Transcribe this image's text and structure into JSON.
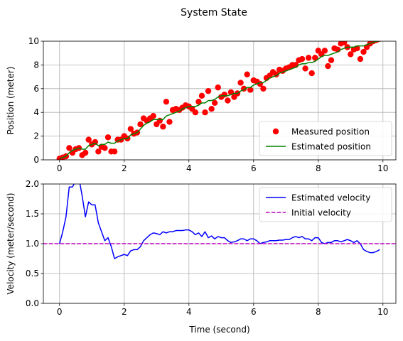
{
  "figure": {
    "suptitle": "System State"
  },
  "chart_data": [
    {
      "type": "scatter+line",
      "title": "",
      "xlabel": "",
      "ylabel": "Position (meter)",
      "xlim": [
        -0.5,
        10.4
      ],
      "ylim": [
        0,
        10
      ],
      "xticks": [
        0,
        2,
        4,
        6,
        8,
        10
      ],
      "yticks": [
        0,
        2,
        4,
        6,
        8,
        10
      ],
      "grid": true,
      "legend_position": "lower-right",
      "series": [
        {
          "name": "Measured position",
          "kind": "points",
          "color": "#ff0000",
          "x": [
            0.0,
            0.1,
            0.2,
            0.3,
            0.4,
            0.5,
            0.6,
            0.7,
            0.8,
            0.9,
            1.0,
            1.1,
            1.2,
            1.3,
            1.4,
            1.5,
            1.6,
            1.7,
            1.8,
            1.9,
            2.0,
            2.1,
            2.2,
            2.3,
            2.4,
            2.5,
            2.6,
            2.7,
            2.8,
            2.9,
            3.0,
            3.1,
            3.2,
            3.3,
            3.4,
            3.5,
            3.6,
            3.7,
            3.8,
            3.9,
            4.0,
            4.1,
            4.2,
            4.3,
            4.4,
            4.5,
            4.6,
            4.7,
            4.8,
            4.9,
            5.0,
            5.1,
            5.2,
            5.3,
            5.4,
            5.5,
            5.6,
            5.7,
            5.8,
            5.9,
            6.0,
            6.1,
            6.2,
            6.3,
            6.4,
            6.5,
            6.6,
            6.7,
            6.8,
            6.9,
            7.0,
            7.1,
            7.2,
            7.3,
            7.4,
            7.5,
            7.6,
            7.7,
            7.8,
            7.9,
            8.0,
            8.1,
            8.2,
            8.3,
            8.4,
            8.5,
            8.6,
            8.7,
            8.8,
            8.9,
            9.0,
            9.1,
            9.2,
            9.3,
            9.4,
            9.5,
            9.6,
            9.7,
            9.8,
            9.9
          ],
          "y": [
            0.1,
            0.2,
            0.3,
            1.0,
            0.6,
            0.9,
            1.0,
            0.4,
            0.6,
            1.7,
            1.3,
            1.5,
            0.7,
            1.1,
            1.0,
            1.9,
            0.7,
            0.7,
            1.7,
            1.7,
            2.0,
            1.8,
            2.6,
            2.2,
            2.3,
            3.0,
            3.5,
            3.3,
            3.5,
            3.7,
            3.0,
            3.3,
            2.8,
            4.9,
            3.2,
            4.2,
            4.3,
            4.2,
            4.4,
            4.6,
            4.5,
            4.3,
            4.0,
            4.9,
            5.4,
            4.0,
            5.8,
            4.3,
            4.8,
            6.1,
            5.3,
            5.5,
            5.0,
            5.7,
            5.3,
            5.6,
            6.5,
            6.0,
            7.2,
            5.9,
            6.7,
            6.6,
            6.4,
            6.0,
            6.9,
            7.1,
            7.4,
            7.2,
            7.6,
            7.5,
            7.7,
            7.8,
            8.0,
            8.0,
            8.4,
            8.5,
            7.7,
            8.6,
            7.3,
            8.6,
            9.2,
            8.9,
            9.2,
            7.9,
            8.4,
            9.4,
            9.3,
            9.8,
            9.9,
            9.5,
            8.9,
            9.3,
            9.4,
            8.5,
            9.1,
            9.5,
            9.8,
            10.0,
            10.1,
            10.2
          ]
        },
        {
          "name": "Estimated position",
          "kind": "line",
          "color": "#008000",
          "x": [
            0.0,
            0.1,
            0.2,
            0.3,
            0.4,
            0.5,
            0.6,
            0.7,
            0.8,
            0.9,
            1.0,
            1.1,
            1.2,
            1.3,
            1.4,
            1.5,
            1.6,
            1.7,
            1.8,
            1.9,
            2.0,
            2.1,
            2.2,
            2.3,
            2.4,
            2.5,
            2.6,
            2.7,
            2.8,
            2.9,
            3.0,
            3.1,
            3.2,
            3.3,
            3.4,
            3.5,
            3.6,
            3.7,
            3.8,
            3.9,
            4.0,
            4.1,
            4.2,
            4.3,
            4.4,
            4.5,
            4.6,
            4.7,
            4.8,
            4.9,
            5.0,
            5.1,
            5.2,
            5.3,
            5.4,
            5.5,
            5.6,
            5.7,
            5.8,
            5.9,
            6.0,
            6.1,
            6.2,
            6.3,
            6.4,
            6.5,
            6.6,
            6.7,
            6.8,
            6.9,
            7.0,
            7.1,
            7.2,
            7.3,
            7.4,
            7.5,
            7.6,
            7.7,
            7.8,
            7.9,
            8.0,
            8.1,
            8.2,
            8.3,
            8.4,
            8.5,
            8.6,
            8.7,
            8.8,
            8.9,
            9.0,
            9.1,
            9.2,
            9.3,
            9.4,
            9.5,
            9.6,
            9.7,
            9.8,
            9.9
          ],
          "y": [
            0.1,
            0.2,
            0.3,
            0.6,
            0.8,
            0.9,
            1.0,
            0.9,
            0.9,
            1.2,
            1.3,
            1.4,
            1.2,
            1.3,
            1.3,
            1.5,
            1.4,
            1.4,
            1.6,
            1.7,
            1.8,
            1.8,
            2.1,
            2.2,
            2.3,
            2.6,
            2.9,
            3.1,
            3.2,
            3.4,
            3.4,
            3.4,
            3.4,
            3.7,
            3.8,
            3.9,
            4.0,
            4.1,
            4.3,
            4.4,
            4.5,
            4.5,
            4.5,
            4.6,
            4.8,
            4.8,
            5.0,
            5.0,
            5.1,
            5.3,
            5.4,
            5.4,
            5.4,
            5.5,
            5.6,
            5.6,
            5.8,
            5.9,
            6.1,
            6.1,
            6.3,
            6.4,
            6.5,
            6.5,
            6.7,
            6.9,
            7.0,
            7.1,
            7.3,
            7.4,
            7.5,
            7.6,
            7.7,
            7.8,
            8.0,
            8.1,
            8.1,
            8.2,
            8.2,
            8.3,
            8.5,
            8.7,
            8.8,
            8.8,
            8.9,
            9.0,
            9.1,
            9.3,
            9.4,
            9.5,
            9.5,
            9.5,
            9.6,
            9.6,
            9.6,
            9.7,
            9.8,
            9.9,
            10.0,
            10.0
          ]
        }
      ]
    },
    {
      "type": "line",
      "title": "",
      "xlabel": "Time (second)",
      "ylabel": "Velocity (meter/second)",
      "xlim": [
        -0.5,
        10.4
      ],
      "ylim": [
        0,
        2
      ],
      "xticks": [
        0,
        2,
        4,
        6,
        8,
        10
      ],
      "yticks": [
        0.0,
        0.5,
        1.0,
        1.5,
        2.0
      ],
      "grid": true,
      "legend_position": "upper-right",
      "series": [
        {
          "name": "Estimated velocity",
          "kind": "line",
          "style": "solid",
          "color": "#0000ff",
          "x": [
            0.0,
            0.1,
            0.2,
            0.3,
            0.4,
            0.5,
            0.6,
            0.7,
            0.8,
            0.9,
            1.0,
            1.1,
            1.2,
            1.3,
            1.4,
            1.5,
            1.6,
            1.7,
            1.8,
            1.9,
            2.0,
            2.1,
            2.2,
            2.3,
            2.4,
            2.5,
            2.6,
            2.7,
            2.8,
            2.9,
            3.0,
            3.1,
            3.2,
            3.3,
            3.4,
            3.5,
            3.6,
            3.7,
            3.8,
            3.9,
            4.0,
            4.1,
            4.2,
            4.3,
            4.4,
            4.5,
            4.6,
            4.7,
            4.8,
            4.9,
            5.0,
            5.1,
            5.2,
            5.3,
            5.4,
            5.5,
            5.6,
            5.7,
            5.8,
            5.9,
            6.0,
            6.1,
            6.2,
            6.3,
            6.4,
            6.5,
            6.6,
            6.7,
            6.8,
            6.9,
            7.0,
            7.1,
            7.2,
            7.3,
            7.4,
            7.5,
            7.6,
            7.7,
            7.8,
            7.9,
            8.0,
            8.1,
            8.2,
            8.3,
            8.4,
            8.5,
            8.6,
            8.7,
            8.8,
            8.9,
            9.0,
            9.1,
            9.2,
            9.3,
            9.4,
            9.5,
            9.6,
            9.7,
            9.8,
            9.9
          ],
          "y": [
            1.0,
            1.2,
            1.45,
            1.95,
            1.95,
            2.05,
            2.1,
            1.8,
            1.45,
            1.7,
            1.65,
            1.65,
            1.35,
            1.2,
            1.05,
            1.1,
            0.95,
            0.75,
            0.78,
            0.8,
            0.82,
            0.8,
            0.88,
            0.9,
            0.9,
            0.95,
            1.05,
            1.1,
            1.15,
            1.18,
            1.17,
            1.15,
            1.2,
            1.18,
            1.2,
            1.2,
            1.22,
            1.22,
            1.22,
            1.23,
            1.23,
            1.2,
            1.15,
            1.18,
            1.12,
            1.2,
            1.1,
            1.13,
            1.08,
            1.12,
            1.1,
            1.1,
            1.05,
            1.02,
            1.03,
            1.05,
            1.08,
            1.08,
            1.05,
            1.08,
            1.08,
            1.05,
            1.0,
            1.02,
            1.03,
            1.05,
            1.05,
            1.05,
            1.06,
            1.06,
            1.07,
            1.07,
            1.1,
            1.12,
            1.1,
            1.12,
            1.08,
            1.08,
            1.05,
            1.1,
            1.1,
            1.02,
            1.0,
            1.02,
            1.02,
            1.05,
            1.05,
            1.03,
            1.05,
            1.07,
            1.05,
            1.02,
            1.05,
            1.0,
            0.9,
            0.87,
            0.85,
            0.85,
            0.87,
            0.9
          ]
        },
        {
          "name": "Initial velocity",
          "kind": "hline",
          "style": "dashed",
          "color": "#bf00bf",
          "y": 1.0
        }
      ]
    }
  ]
}
